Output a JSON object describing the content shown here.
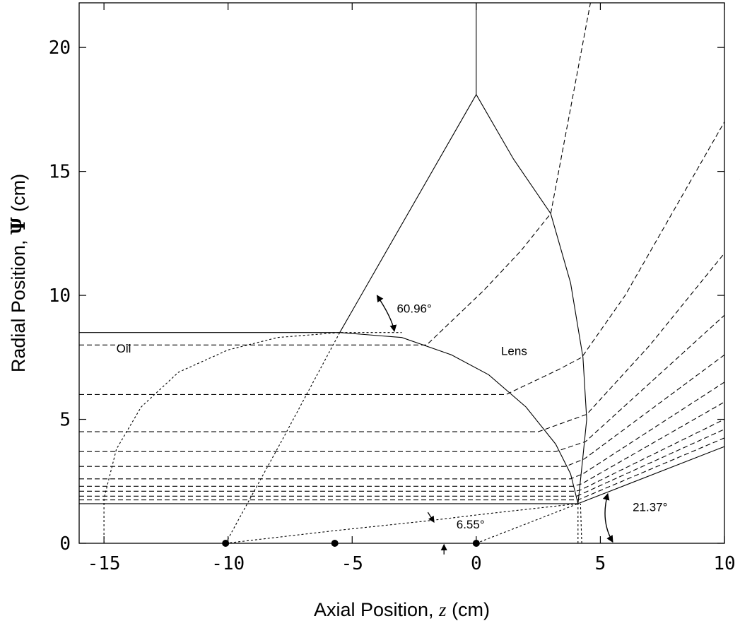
{
  "chart_data": {
    "type": "line",
    "title": "",
    "xlabel": {
      "prefix": "Axial Position, ",
      "var": "z",
      "unit": " (cm)"
    },
    "ylabel": {
      "prefix": "Radial Position, ",
      "var": "Ψ",
      "unit": " (cm)"
    },
    "xlim": [
      -16,
      10
    ],
    "ylim": [
      0,
      21.8
    ],
    "xticks": [
      -15,
      -10,
      -5,
      0,
      5,
      10
    ],
    "yticks": [
      0,
      5,
      10,
      15,
      20
    ],
    "xtick_labels": [
      "-15",
      "-10",
      "-5",
      "0",
      "5",
      "10"
    ],
    "ytick_labels": [
      "0",
      "5",
      "10",
      "15",
      "20"
    ],
    "grid": false,
    "annotations": [
      {
        "text": "60.96°",
        "x": -3.2,
        "y": 9.3
      },
      {
        "text": "Oil",
        "x": 10.6,
        "y": 14.5
      },
      {
        "text": "Oil",
        "x": -14.5,
        "y": 7.7
      },
      {
        "text": "Lens",
        "x": 1.0,
        "y": 7.6
      },
      {
        "text": "6.55°",
        "x": -0.8,
        "y": 0.6
      },
      {
        "text": "21.37°",
        "x": 6.3,
        "y": 1.3
      }
    ],
    "series": [
      {
        "style": "solid",
        "points": [
          [
            -16,
            8.5
          ],
          [
            -5.5,
            8.5
          ]
        ]
      },
      {
        "style": "solid",
        "points": [
          [
            -16,
            1.6
          ],
          [
            4.1,
            1.6
          ]
        ]
      },
      {
        "style": "solid",
        "points": [
          [
            -5.5,
            8.5
          ],
          [
            0,
            18.1
          ],
          [
            0,
            21.8
          ]
        ]
      },
      {
        "style": "solid",
        "points": [
          [
            0,
            18.1
          ],
          [
            1.5,
            15.5
          ],
          [
            3.0,
            13.3
          ],
          [
            3.8,
            10.5
          ],
          [
            4.3,
            7.5
          ],
          [
            4.45,
            5.0
          ],
          [
            4.3,
            3.5
          ],
          [
            4.1,
            1.6
          ]
        ]
      },
      {
        "style": "solid",
        "points": [
          [
            -5.5,
            8.5
          ],
          [
            -3.0,
            8.3
          ],
          [
            -1.0,
            7.6
          ],
          [
            0.5,
            6.8
          ],
          [
            2.0,
            5.5
          ],
          [
            3.2,
            4.0
          ],
          [
            3.8,
            2.8
          ],
          [
            4.1,
            1.6
          ]
        ]
      },
      {
        "style": "solid",
        "points": [
          [
            4.1,
            1.6
          ],
          [
            10,
            3.9
          ]
        ]
      },
      {
        "style": "dashed",
        "points": [
          [
            -16,
            8.0
          ],
          [
            -2.0,
            8.0
          ],
          [
            0.3,
            10.2
          ],
          [
            1.8,
            11.8
          ],
          [
            3.0,
            13.3
          ],
          [
            4.6,
            21.8
          ]
        ]
      },
      {
        "style": "dashed",
        "points": [
          [
            -16,
            6.0
          ],
          [
            1.2,
            6.0
          ],
          [
            3.3,
            7.0
          ],
          [
            4.25,
            7.5
          ],
          [
            6.0,
            10.0
          ],
          [
            10,
            17.0
          ]
        ]
      },
      {
        "style": "dashed",
        "points": [
          [
            -16,
            4.5
          ],
          [
            2.5,
            4.5
          ],
          [
            4.45,
            5.2
          ],
          [
            7.0,
            8.0
          ],
          [
            10,
            11.7
          ]
        ]
      },
      {
        "style": "dashed",
        "points": [
          [
            -16,
            3.7
          ],
          [
            3.2,
            3.7
          ],
          [
            4.4,
            4.1
          ],
          [
            10,
            9.2
          ]
        ]
      },
      {
        "style": "dashed",
        "points": [
          [
            -16,
            3.1
          ],
          [
            3.6,
            3.1
          ],
          [
            4.35,
            3.4
          ],
          [
            10,
            7.6
          ]
        ]
      },
      {
        "style": "dashed",
        "points": [
          [
            -16,
            2.6
          ],
          [
            3.8,
            2.6
          ],
          [
            4.3,
            2.8
          ],
          [
            10,
            6.5
          ]
        ]
      },
      {
        "style": "dashed",
        "points": [
          [
            -16,
            2.3
          ],
          [
            3.9,
            2.3
          ],
          [
            4.25,
            2.4
          ],
          [
            10,
            5.7
          ]
        ]
      },
      {
        "style": "dashed",
        "points": [
          [
            -16,
            2.1
          ],
          [
            4.0,
            2.1
          ],
          [
            4.2,
            2.15
          ],
          [
            10,
            5.0
          ]
        ]
      },
      {
        "style": "dashed",
        "points": [
          [
            -16,
            1.9
          ],
          [
            4.05,
            1.9
          ],
          [
            10,
            4.6
          ]
        ]
      },
      {
        "style": "dashed",
        "points": [
          [
            -16,
            1.75
          ],
          [
            4.1,
            1.75
          ],
          [
            10,
            4.25
          ]
        ]
      },
      {
        "style": "dotted",
        "points": [
          [
            -15.0,
            0
          ],
          [
            -15.0,
            1.8
          ],
          [
            -14.5,
            3.8
          ],
          [
            -13.5,
            5.5
          ],
          [
            -12.0,
            6.9
          ],
          [
            -10.0,
            7.8
          ],
          [
            -8.0,
            8.3
          ],
          [
            -5.5,
            8.5
          ],
          [
            -3.0,
            8.5
          ]
        ]
      },
      {
        "style": "dotted",
        "points": [
          [
            -10.1,
            0
          ],
          [
            -7.8,
            4.2
          ],
          [
            -5.5,
            8.5
          ]
        ]
      },
      {
        "style": "dotted",
        "points": [
          [
            -10.1,
            0
          ],
          [
            -5.8,
            0.5
          ],
          [
            -2.0,
            0.9
          ],
          [
            0.5,
            1.2
          ],
          [
            4.1,
            1.6
          ]
        ]
      },
      {
        "style": "dotted",
        "points": [
          [
            0,
            0
          ],
          [
            4.1,
            1.6
          ]
        ]
      },
      {
        "style": "dotted",
        "points": [
          [
            4.1,
            0
          ],
          [
            4.1,
            1.6
          ]
        ]
      },
      {
        "style": "dotted",
        "points": [
          [
            4.25,
            0
          ],
          [
            4.2,
            1.6
          ]
        ]
      }
    ],
    "markers": [
      [
        -10.1,
        0
      ],
      [
        -5.7,
        0
      ],
      [
        0,
        0
      ]
    ]
  }
}
